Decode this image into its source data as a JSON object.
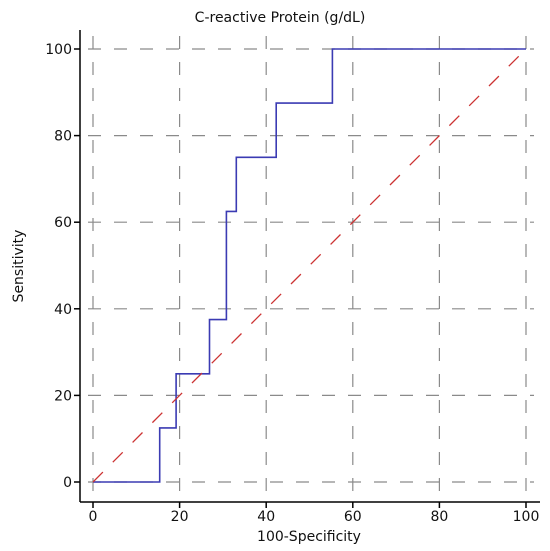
{
  "chart_data": {
    "type": "line",
    "title": "C-reactive Protein (g/dL)",
    "xlabel": "100-Specificity",
    "ylabel": "Sensitivity",
    "xlim": [
      0,
      100
    ],
    "ylim": [
      0,
      100
    ],
    "x_ticks": [
      "0",
      "20",
      "40",
      "60",
      "80",
      "100"
    ],
    "y_ticks": [
      "0",
      "20",
      "40",
      "60",
      "80",
      "100"
    ],
    "grid": true,
    "series": [
      {
        "style": "step",
        "color": "#3b3bb3",
        "points": [
          [
            0,
            0
          ],
          [
            15.4,
            0
          ],
          [
            15.4,
            12.5
          ],
          [
            19.2,
            12.5
          ],
          [
            19.2,
            25
          ],
          [
            26.9,
            25
          ],
          [
            26.9,
            37.5
          ],
          [
            30.8,
            37.5
          ],
          [
            30.8,
            62.5
          ],
          [
            33.1,
            62.5
          ],
          [
            33.1,
            75
          ],
          [
            42.3,
            75
          ],
          [
            42.3,
            87.5
          ],
          [
            55.3,
            87.5
          ],
          [
            55.3,
            100
          ],
          [
            100,
            100
          ]
        ]
      },
      {
        "style": "dashed",
        "color": "#cc3333",
        "points": [
          [
            0,
            0
          ],
          [
            100,
            100
          ]
        ]
      }
    ]
  }
}
